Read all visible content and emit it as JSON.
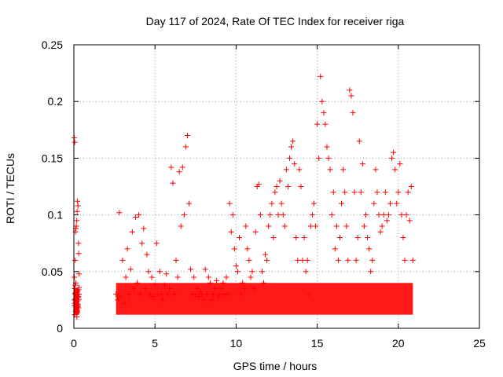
{
  "chart_data": {
    "type": "scatter",
    "title": "Day 117 of 2024, Rate Of TEC Index for receiver riga",
    "xlabel": "GPS time / hours",
    "ylabel": "ROTI / TECUs",
    "xlim": [
      0,
      25
    ],
    "ylim": [
      0,
      0.25
    ],
    "xticks": [
      0,
      5,
      10,
      15,
      20,
      25
    ],
    "xtick_labels": [
      "0",
      "5",
      "10",
      "15",
      "20",
      "25"
    ],
    "yticks": [
      0,
      0.05,
      0.1,
      0.15,
      0.2,
      0.25
    ],
    "ytick_labels": [
      "0",
      "0.05",
      "0.1",
      "0.15",
      "0.2",
      "0.25"
    ],
    "grid": true,
    "marker": "plus",
    "color": "#ff0000",
    "series": [
      {
        "x": [
          0.02,
          0.05,
          0.08,
          0.1,
          0.12,
          0.15,
          0.18,
          0.2,
          0.22,
          0.25,
          0.28,
          0.3,
          0.32,
          0.05,
          0.1,
          0.15,
          0.2,
          0.25,
          0.3,
          0.02,
          0.05,
          0.1,
          0.15,
          0.2,
          0.25,
          0.3,
          0.32,
          0.05,
          0.1,
          0.18,
          0.22,
          0.28,
          0.03,
          0.08,
          0.12,
          0.17,
          0.22,
          0.27,
          0.31,
          0.04,
          0.09,
          0.14,
          0.19,
          0.24,
          0.29,
          0.06,
          0.11,
          0.16,
          0.21,
          0.26,
          0.3
        ],
        "y": [
          0.168,
          0.164,
          0.06,
          0.085,
          0.088,
          0.09,
          0.095,
          0.103,
          0.112,
          0.108,
          0.075,
          0.066,
          0.048,
          0.035,
          0.03,
          0.028,
          0.032,
          0.027,
          0.03,
          0.025,
          0.022,
          0.02,
          0.018,
          0.015,
          0.02,
          0.025,
          0.03,
          0.012,
          0.015,
          0.01,
          0.014,
          0.018,
          0.045,
          0.038,
          0.04,
          0.022,
          0.033,
          0.028,
          0.036,
          0.02,
          0.026,
          0.017,
          0.024,
          0.019,
          0.027,
          0.031,
          0.023,
          0.029,
          0.016,
          0.021,
          0.034
        ]
      },
      {
        "x": [
          2.6,
          2.7,
          2.8,
          2.9,
          3.0,
          3.1,
          3.2,
          3.3,
          3.4,
          3.5,
          3.6,
          3.7,
          3.8,
          3.9,
          4.0,
          4.1,
          4.2,
          4.3,
          4.4,
          4.5,
          4.6,
          4.7,
          4.8,
          4.9,
          5.0,
          5.1,
          5.2,
          5.3,
          5.4,
          5.5,
          5.6,
          5.7,
          5.8,
          5.9,
          6.0,
          6.1,
          6.2,
          6.3,
          6.4,
          6.5,
          6.6,
          6.7,
          6.8,
          6.9,
          7.0,
          7.1,
          7.2,
          7.3,
          7.4,
          7.5,
          7.6,
          7.7,
          7.8,
          7.9,
          8.0,
          8.1,
          8.2,
          8.3,
          8.4,
          8.5,
          8.6,
          8.7,
          8.8,
          8.9,
          9.0,
          9.1,
          9.2,
          9.3,
          9.4,
          9.5,
          9.6,
          9.7,
          9.8,
          9.9,
          10.0,
          10.1,
          10.2,
          10.3,
          10.4,
          10.5,
          10.6,
          10.7,
          10.8,
          10.9,
          11.0,
          11.1,
          11.2,
          11.3,
          11.4,
          11.5,
          11.6,
          11.7,
          11.8,
          11.9,
          12.0,
          12.1,
          12.2,
          12.3,
          12.4,
          12.5,
          12.6,
          12.7,
          12.8,
          12.9,
          13.0,
          13.1,
          13.2,
          13.3,
          13.4,
          13.5,
          13.6,
          13.7,
          13.8,
          13.9,
          14.0,
          14.1,
          14.2,
          14.3,
          14.4,
          14.5,
          14.6,
          14.7,
          14.8,
          14.9,
          15.0,
          15.1,
          15.2,
          15.3,
          15.4,
          15.5,
          15.6,
          15.7,
          15.8,
          15.9,
          16.0,
          16.1,
          16.2,
          16.3,
          16.4,
          16.5,
          16.6,
          16.7,
          16.8,
          16.9,
          17.0,
          17.1,
          17.2,
          17.3,
          17.4,
          17.5,
          17.6,
          17.7,
          17.8,
          17.9,
          18.0,
          18.1,
          18.2,
          18.3,
          18.4,
          18.5,
          18.6,
          18.7,
          18.8,
          18.9,
          19.0,
          19.1,
          19.2,
          19.3,
          19.4,
          19.5,
          19.6,
          19.7,
          19.8,
          19.9,
          20.0,
          20.1,
          20.2,
          20.3,
          20.4,
          20.5,
          20.6,
          20.7,
          20.8,
          20.9
        ],
        "y": [
          0.03,
          0.025,
          0.102,
          0.028,
          0.06,
          0.022,
          0.045,
          0.07,
          0.03,
          0.052,
          0.085,
          0.035,
          0.098,
          0.04,
          0.1,
          0.03,
          0.075,
          0.088,
          0.035,
          0.065,
          0.05,
          0.03,
          0.045,
          0.028,
          0.038,
          0.075,
          0.03,
          0.05,
          0.03,
          0.025,
          0.038,
          0.048,
          0.03,
          0.035,
          0.142,
          0.128,
          0.03,
          0.06,
          0.045,
          0.138,
          0.09,
          0.142,
          0.1,
          0.16,
          0.17,
          0.11,
          0.052,
          0.03,
          0.045,
          0.03,
          0.035,
          0.028,
          0.032,
          0.03,
          0.025,
          0.052,
          0.03,
          0.045,
          0.04,
          0.025,
          0.03,
          0.035,
          0.042,
          0.028,
          0.03,
          0.035,
          0.04,
          0.03,
          0.045,
          0.03,
          0.11,
          0.085,
          0.1,
          0.07,
          0.055,
          0.05,
          0.08,
          0.03,
          0.04,
          0.035,
          0.09,
          0.07,
          0.06,
          0.045,
          0.05,
          0.035,
          0.085,
          0.125,
          0.127,
          0.1,
          0.05,
          0.04,
          0.065,
          0.06,
          0.09,
          0.1,
          0.11,
          0.08,
          0.12,
          0.125,
          0.1,
          0.13,
          0.11,
          0.1,
          0.09,
          0.14,
          0.125,
          0.15,
          0.16,
          0.165,
          0.145,
          0.08,
          0.06,
          0.14,
          0.125,
          0.06,
          0.08,
          0.05,
          0.06,
          0.03,
          0.09,
          0.1,
          0.11,
          0.09,
          0.18,
          0.15,
          0.222,
          0.2,
          0.19,
          0.18,
          0.16,
          0.15,
          0.14,
          0.1,
          0.12,
          0.07,
          0.09,
          0.06,
          0.08,
          0.11,
          0.14,
          0.12,
          0.09,
          0.06,
          0.21,
          0.205,
          0.19,
          0.12,
          0.06,
          0.08,
          0.165,
          0.12,
          0.145,
          0.09,
          0.1,
          0.08,
          0.07,
          0.05,
          0.06,
          0.11,
          0.14,
          0.12,
          0.1,
          0.085,
          0.09,
          0.1,
          0.12,
          0.095,
          0.1,
          0.11,
          0.15,
          0.155,
          0.14,
          0.11,
          0.12,
          0.145,
          0.1,
          0.08,
          0.06,
          0.1,
          0.12,
          0.095,
          0.125,
          0.06
        ]
      }
    ]
  }
}
